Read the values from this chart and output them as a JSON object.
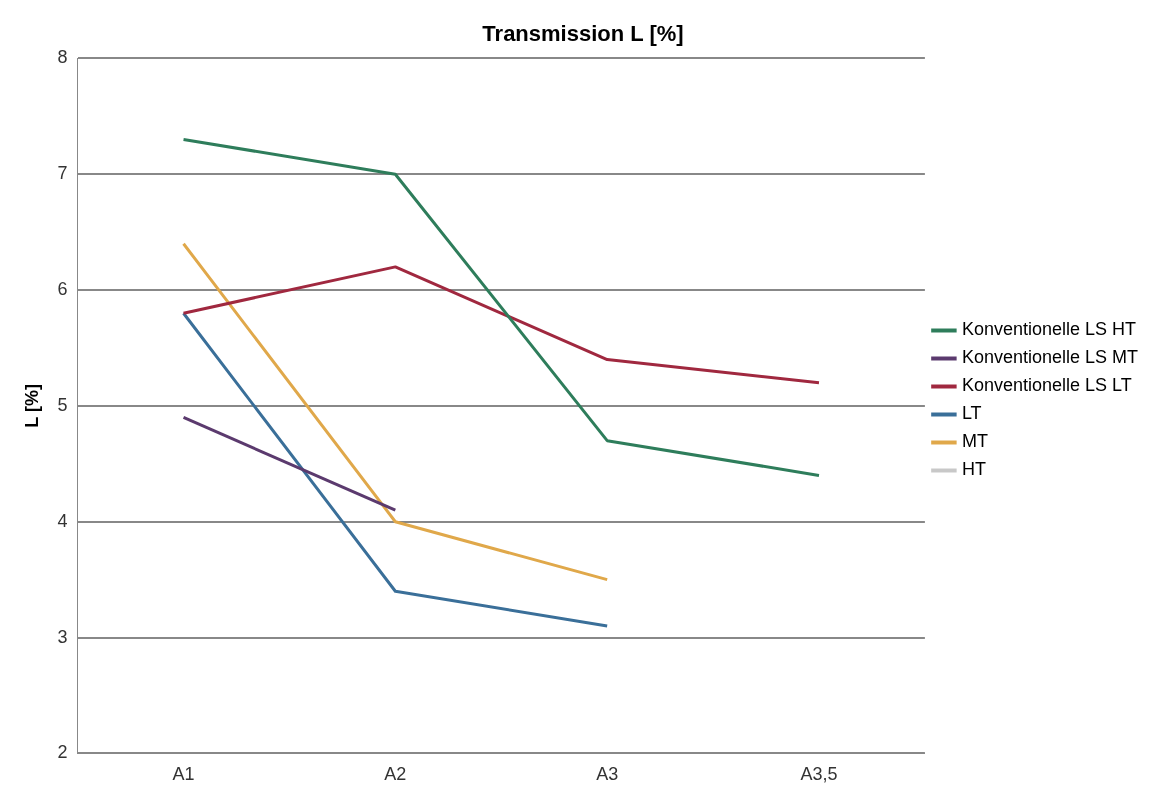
{
  "chart_data": {
    "type": "line",
    "title": "Transmission L [%]",
    "ylabel": "L [%]",
    "categories": [
      "A1",
      "A2",
      "A3",
      "A3,5"
    ],
    "series": [
      {
        "name": "Konventionelle LS HT",
        "color": "#2e7d5b",
        "values": [
          7.3,
          7.0,
          4.7,
          4.4
        ]
      },
      {
        "name": "Konventionelle LS MT",
        "color": "#5b3a6e",
        "values": [
          4.9,
          4.1,
          null,
          null
        ]
      },
      {
        "name": "Konventionelle LS LT",
        "color": "#a0283f",
        "values": [
          5.8,
          6.2,
          5.4,
          5.2
        ]
      },
      {
        "name": "LT",
        "color": "#3a6f99",
        "values": [
          5.8,
          3.4,
          3.1,
          null
        ]
      },
      {
        "name": "MT",
        "color": "#e0a84a",
        "values": [
          6.4,
          4.0,
          3.5,
          null
        ]
      },
      {
        "name": "HT",
        "color": "#c8c8c8",
        "values": [
          null,
          null,
          null,
          null
        ]
      }
    ],
    "ylim": [
      2,
      8
    ],
    "yticks": [
      2,
      3,
      4,
      5,
      6,
      7,
      8
    ],
    "grid": "y",
    "legend": "right",
    "marker": "none",
    "line_style": "solid"
  }
}
